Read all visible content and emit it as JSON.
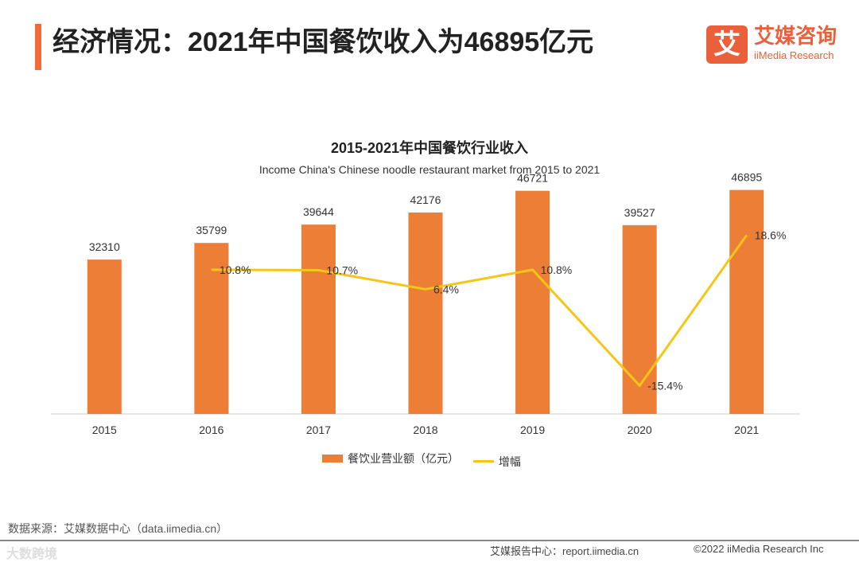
{
  "header": {
    "title": "经济情况：2021年中国餐饮收入为46895亿元"
  },
  "logo": {
    "mark": "艾",
    "name_cn": "艾媒咨询",
    "name_en": "iiMedia Research"
  },
  "chart_data": {
    "type": "bar",
    "title": "2015-2021年中国餐饮行业收入",
    "subtitle": "Income China's Chinese noodle restaurant market from 2015 to 2021",
    "categories": [
      "2015",
      "2016",
      "2017",
      "2018",
      "2019",
      "2020",
      "2021"
    ],
    "series": [
      {
        "name": "餐饮业营业额（亿元）",
        "type": "bar",
        "values": [
          32310,
          35799,
          39644,
          42176,
          46721,
          39527,
          46895
        ]
      },
      {
        "name": "增幅",
        "type": "line",
        "values": [
          null,
          10.8,
          10.7,
          6.4,
          10.8,
          -15.4,
          18.6
        ],
        "labels": [
          "",
          "10.8%",
          "10.7%",
          "6.4%",
          "10.8%",
          "-15.4%",
          "18.6%"
        ]
      }
    ],
    "ylim": [
      0,
      50000
    ],
    "growth_lim": [
      -20,
      25
    ],
    "legend": "bottom-center",
    "colors": {
      "bar": "#ec7e35",
      "line": "#f5c518"
    }
  },
  "source": "数据来源：艾媒数据中心（data.iimedia.cn）",
  "footer": {
    "watermark": "大数跨境",
    "center": "艾媒报告中心：report.iimedia.cn",
    "right": "©2022 iiMedia Research Inc"
  }
}
